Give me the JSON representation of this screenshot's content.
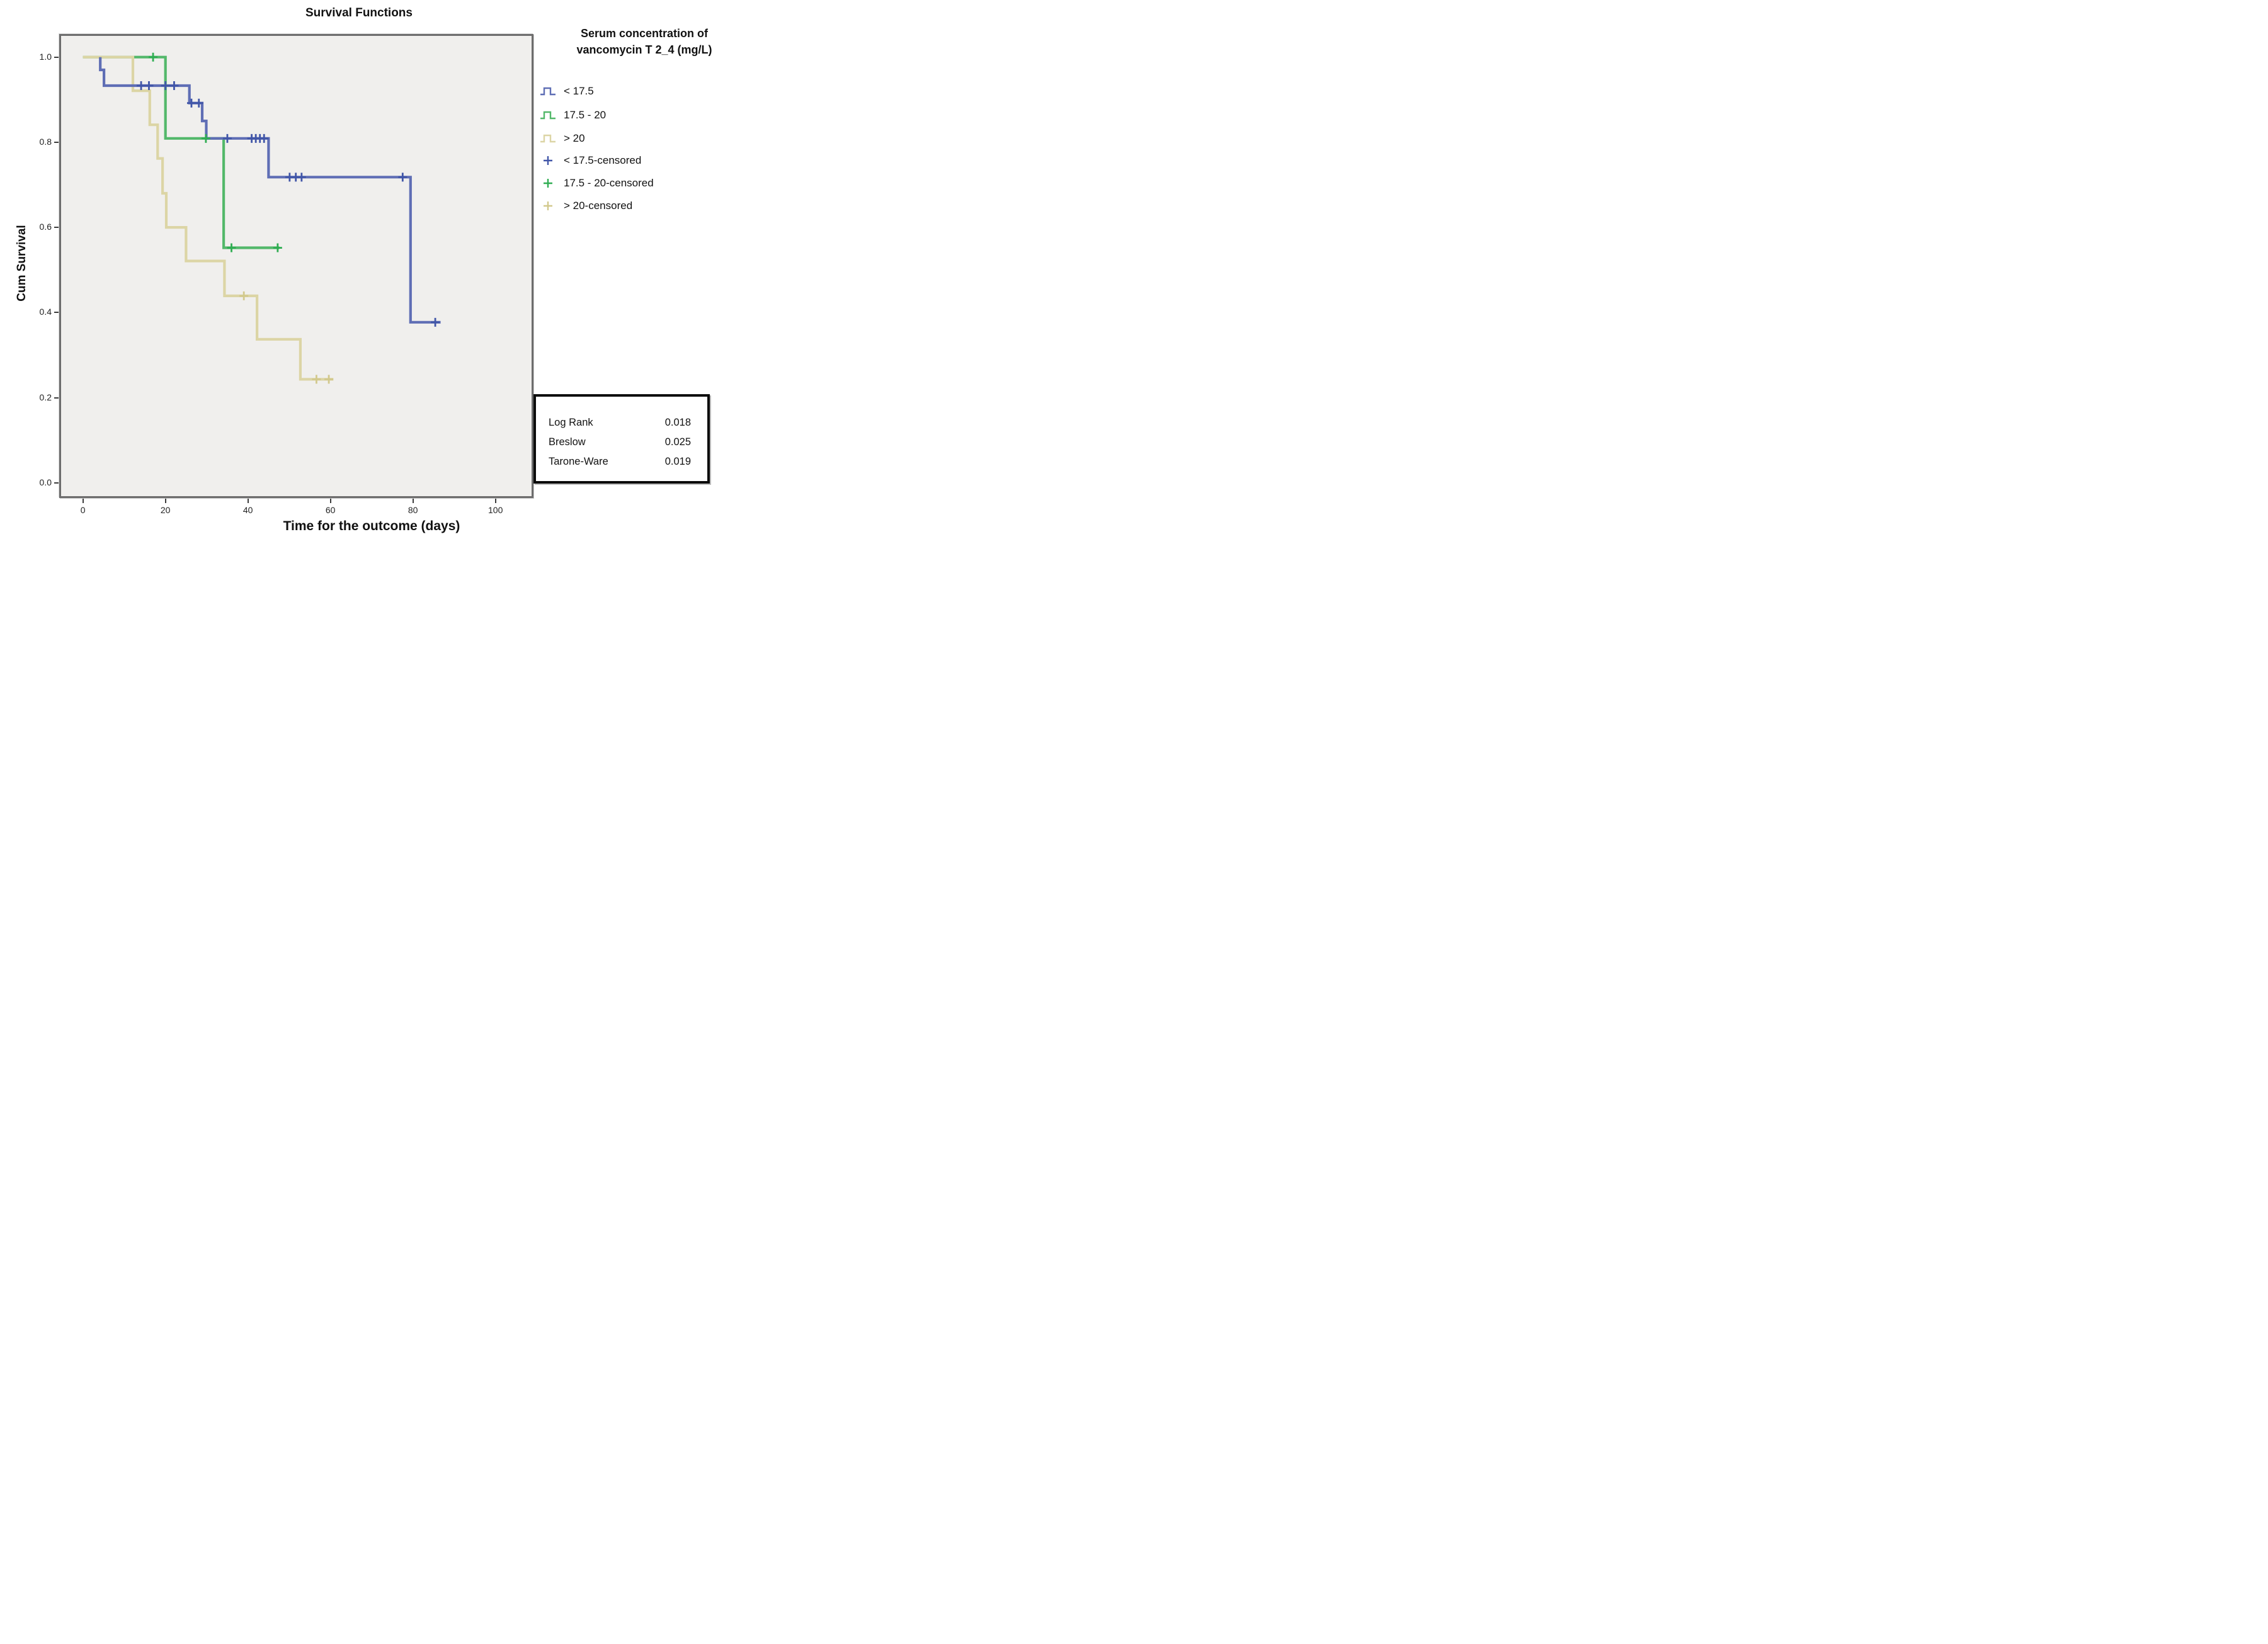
{
  "title": "Survival Functions",
  "x_axis": {
    "label": "Time for the outcome (days)",
    "ticks": [
      0,
      20,
      40,
      60,
      80,
      100
    ]
  },
  "y_axis": {
    "label": "Cum Survival",
    "ticks": [
      "1.0",
      "0.8",
      "0.6",
      "0.4",
      "0.2",
      "0.0"
    ]
  },
  "legend": {
    "title_line1": "Serum concentration of",
    "title_line2": "vancomycin T 2_4 (mg/L)",
    "items": [
      {
        "label": "< 17.5",
        "color": "#5f6eb5",
        "glyph": "step-line"
      },
      {
        "label": "17.5 - 20",
        "color": "#53b86a",
        "glyph": "step-line"
      },
      {
        "label": "> 20",
        "color": "#dcd5a5",
        "glyph": "step-line"
      },
      {
        "label": "< 17.5-censored",
        "color": "#4156a8",
        "glyph": "plus"
      },
      {
        "label": "17.5 - 20-censored",
        "color": "#2fad52",
        "glyph": "plus"
      },
      {
        "label": "> 20-censored",
        "color": "#d2c98d",
        "glyph": "plus"
      }
    ]
  },
  "stats_box": {
    "rows": [
      {
        "label": "Log Rank",
        "value": "0.018"
      },
      {
        "label": "Breslow",
        "value": "0.025"
      },
      {
        "label": "Tarone-Ware",
        "value": "0.019"
      }
    ]
  },
  "chart_data": {
    "type": "line",
    "subtype": "kaplan-meier-step",
    "title": "Survival Functions",
    "xlabel": "Time for the outcome (days)",
    "ylabel": "Cum Survival",
    "xlim": [
      -5,
      107
    ],
    "ylim": [
      0,
      1.05
    ],
    "grid": false,
    "legend_position": "right",
    "pvalues": {
      "log_rank": 0.018,
      "breslow": 0.025,
      "tarone_ware": 0.019
    },
    "series": [
      {
        "name": "< 17.5",
        "color": "#5f6eb5",
        "censor_color": "#4156a8",
        "start_t": 4.2,
        "start_s": 1.0,
        "drops": [
          [
            4.2,
            0.97
          ],
          [
            5.1,
            0.933
          ],
          [
            25.8,
            0.892
          ],
          [
            28.9,
            0.85
          ],
          [
            29.9,
            0.809
          ],
          [
            45.0,
            0.718
          ],
          [
            79.4,
            0.377
          ]
        ],
        "end_t": 86.7,
        "censored": [
          [
            14.1,
            0.933
          ],
          [
            16.0,
            0.933
          ],
          [
            20.0,
            0.933
          ],
          [
            22.1,
            0.933
          ],
          [
            26.3,
            0.892
          ],
          [
            28.1,
            0.892
          ],
          [
            35.0,
            0.809
          ],
          [
            40.9,
            0.809
          ],
          [
            41.9,
            0.809
          ],
          [
            42.9,
            0.809
          ],
          [
            43.9,
            0.809
          ],
          [
            50.1,
            0.718
          ],
          [
            51.6,
            0.718
          ],
          [
            53.0,
            0.718
          ],
          [
            77.5,
            0.718
          ],
          [
            85.4,
            0.377
          ]
        ]
      },
      {
        "name": "17.5 - 20",
        "color": "#53b86a",
        "censor_color": "#2fad52",
        "start_t": 0,
        "start_s": 1.0,
        "drops": [
          [
            20.0,
            0.809
          ],
          [
            34.1,
            0.552
          ]
        ],
        "end_t": 47.6,
        "censored": [
          [
            17.0,
            1.0
          ],
          [
            29.8,
            0.809
          ],
          [
            36.0,
            0.552
          ],
          [
            47.2,
            0.552
          ]
        ]
      },
      {
        "name": "> 20",
        "color": "#dcd5a5",
        "censor_color": "#d2c98d",
        "start_t": 0,
        "start_s": 1.0,
        "drops": [
          [
            12.1,
            0.921
          ],
          [
            16.2,
            0.841
          ],
          [
            18.1,
            0.762
          ],
          [
            19.3,
            0.68
          ],
          [
            20.2,
            0.6
          ],
          [
            25.0,
            0.521
          ],
          [
            34.3,
            0.439
          ],
          [
            42.2,
            0.337
          ],
          [
            52.7,
            0.243
          ]
        ],
        "end_t": 60.7,
        "censored": [
          [
            39.0,
            0.439
          ],
          [
            56.6,
            0.243
          ],
          [
            59.6,
            0.243
          ]
        ]
      }
    ]
  }
}
